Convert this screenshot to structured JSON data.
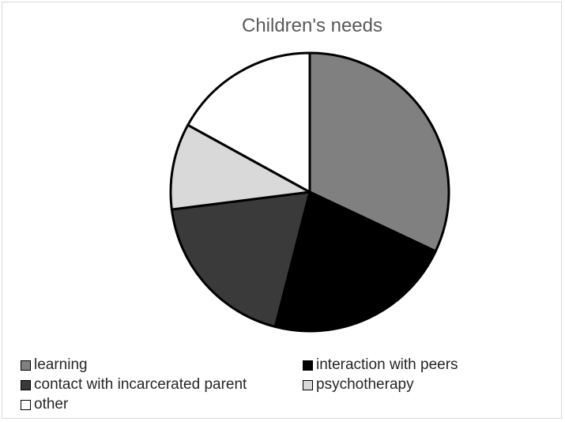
{
  "chart_data": {
    "type": "pie",
    "title": "Children's needs",
    "legend_position": "bottom",
    "slices": [
      {
        "label": "learning",
        "value": 32,
        "color": "#808080"
      },
      {
        "label": "interaction with peers",
        "value": 22,
        "color": "#000000"
      },
      {
        "label": "contact with incarcerated parent",
        "value": 19,
        "color": "#3a3a3a"
      },
      {
        "label": "psychotherapy",
        "value": 10,
        "color": "#d9d9d9"
      },
      {
        "label": "other",
        "value": 17,
        "color": "#ffffff"
      }
    ]
  }
}
